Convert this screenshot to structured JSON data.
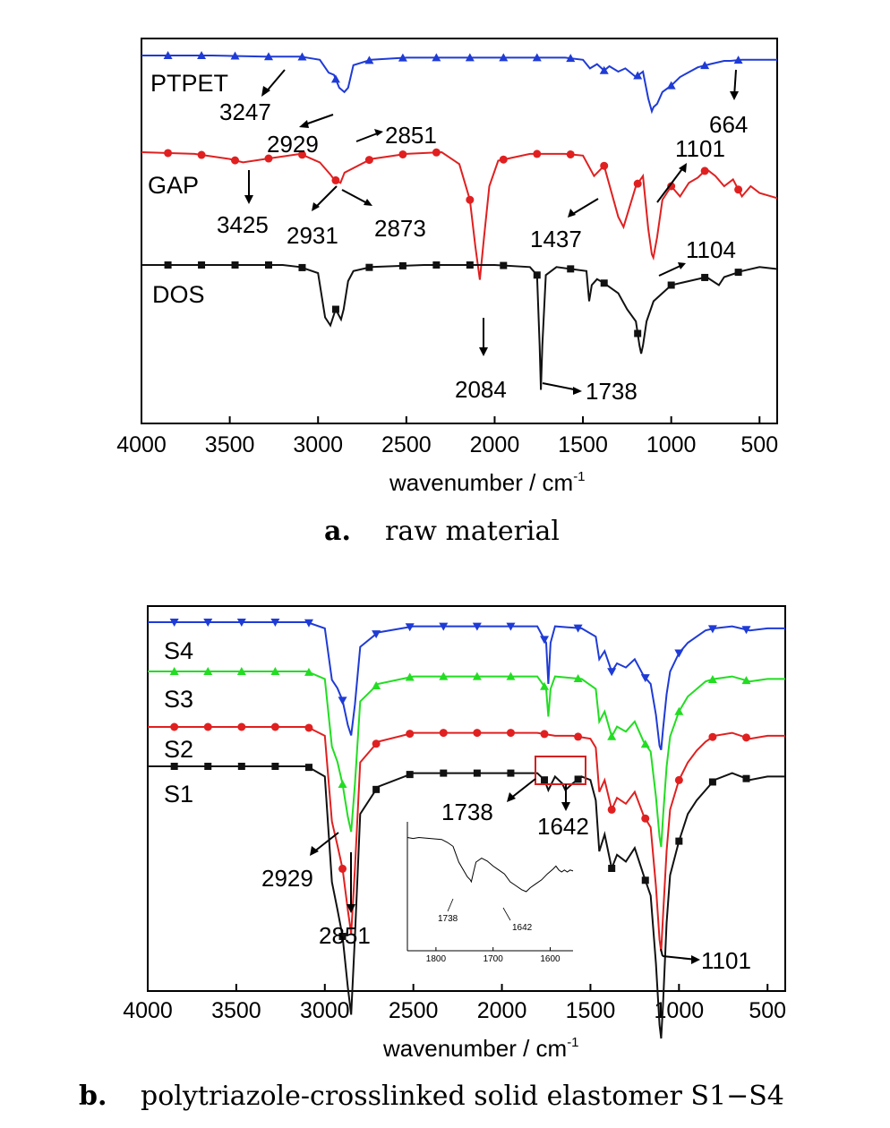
{
  "chart_data": [
    {
      "type": "line",
      "panel": "a",
      "caption_letter": "a.",
      "caption_text": "raw material",
      "xlabel": "wavenumber / cm",
      "xlabel_sup": "-1",
      "xlim": [
        4000,
        400
      ],
      "xticks": [
        4000,
        3500,
        3000,
        2500,
        2000,
        1500,
        1000,
        500
      ],
      "series": [
        {
          "name": "PTPET",
          "color": "#1f3bd6",
          "marker": "triangle-up",
          "x": [
            4000,
            3600,
            3300,
            3100,
            2990,
            2940,
            2910,
            2880,
            2851,
            2830,
            2800,
            2700,
            2500,
            2000,
            1600,
            1500,
            1460,
            1420,
            1380,
            1350,
            1300,
            1260,
            1200,
            1160,
            1130,
            1110,
            1100,
            1080,
            1050,
            1000,
            950,
            850,
            780,
            700,
            664,
            600,
            500,
            400
          ],
          "y": [
            1.0,
            1.0,
            0.99,
            0.99,
            0.96,
            0.84,
            0.82,
            0.7,
            0.66,
            0.7,
            0.91,
            0.96,
            0.98,
            0.98,
            0.98,
            0.96,
            0.88,
            0.92,
            0.86,
            0.9,
            0.85,
            0.88,
            0.8,
            0.85,
            0.6,
            0.48,
            0.52,
            0.55,
            0.66,
            0.72,
            0.8,
            0.89,
            0.92,
            0.95,
            0.95,
            0.96,
            0.96,
            0.96
          ]
        },
        {
          "name": "GAP",
          "color": "#e02020",
          "marker": "circle",
          "x": [
            4000,
            3700,
            3500,
            3425,
            3300,
            3100,
            2990,
            2931,
            2910,
            2873,
            2850,
            2700,
            2500,
            2300,
            2200,
            2140,
            2110,
            2084,
            2060,
            2030,
            1980,
            1800,
            1600,
            1500,
            1437,
            1380,
            1300,
            1270,
            1200,
            1160,
            1130,
            1110,
            1101,
            1080,
            1050,
            1000,
            950,
            900,
            850,
            800,
            750,
            700,
            650,
            600,
            550,
            500,
            400
          ],
          "y": [
            1.0,
            0.99,
            0.96,
            0.94,
            0.96,
            0.99,
            0.94,
            0.87,
            0.84,
            0.82,
            0.88,
            0.96,
            0.99,
            1.0,
            0.93,
            0.72,
            0.45,
            0.25,
            0.5,
            0.8,
            0.95,
            0.99,
            0.99,
            0.98,
            0.86,
            0.92,
            0.62,
            0.56,
            0.8,
            0.86,
            0.55,
            0.4,
            0.38,
            0.5,
            0.72,
            0.8,
            0.74,
            0.82,
            0.85,
            0.9,
            0.86,
            0.8,
            0.84,
            0.74,
            0.8,
            0.76,
            0.73
          ]
        },
        {
          "name": "DOS",
          "color": "#111111",
          "marker": "square",
          "x": [
            4000,
            3200,
            3100,
            3000,
            2960,
            2930,
            2900,
            2870,
            2855,
            2830,
            2800,
            2700,
            2400,
            2000,
            1800,
            1760,
            1745,
            1738,
            1730,
            1710,
            1650,
            1480,
            1465,
            1450,
            1420,
            1380,
            1300,
            1250,
            1200,
            1180,
            1170,
            1160,
            1140,
            1100,
            1050,
            1000,
            900,
            800,
            730,
            700,
            600,
            500,
            400
          ],
          "y": [
            1.0,
            1.0,
            0.99,
            0.96,
            0.74,
            0.7,
            0.78,
            0.73,
            0.78,
            0.92,
            0.97,
            0.99,
            1.0,
            1.0,
            0.99,
            0.95,
            0.6,
            0.38,
            0.6,
            0.95,
            0.99,
            0.97,
            0.82,
            0.9,
            0.93,
            0.91,
            0.86,
            0.78,
            0.72,
            0.6,
            0.56,
            0.6,
            0.72,
            0.82,
            0.86,
            0.9,
            0.92,
            0.94,
            0.9,
            0.94,
            0.97,
            0.99,
            0.98
          ]
        }
      ],
      "annotations": [
        "3247",
        "2929",
        "2851",
        "664",
        "3425",
        "2931",
        "2873",
        "1437",
        "1101",
        "1104",
        "2084",
        "1738"
      ]
    },
    {
      "type": "line",
      "panel": "b",
      "caption_letter": "b.",
      "caption_text": "polytriazole-crosslinked solid elastomer S1−S4",
      "xlabel": "wavenumber / cm",
      "xlabel_sup": "-1",
      "xlim": [
        4000,
        400
      ],
      "xticks": [
        4000,
        3500,
        3000,
        2500,
        2000,
        1500,
        1000,
        500
      ],
      "series": [
        {
          "name": "S4",
          "color": "#1f3bd6",
          "marker": "triangle-down",
          "x": [
            4000,
            3100,
            3000,
            2960,
            2929,
            2900,
            2870,
            2851,
            2830,
            2800,
            2700,
            2500,
            2000,
            1800,
            1750,
            1738,
            1725,
            1700,
            1550,
            1470,
            1450,
            1420,
            1380,
            1350,
            1300,
            1250,
            1200,
            1160,
            1130,
            1110,
            1101,
            1090,
            1070,
            1050,
            1000,
            950,
            900,
            850,
            800,
            700,
            600,
            500,
            400
          ],
          "y": [
            1.0,
            1.0,
            0.97,
            0.72,
            0.68,
            0.62,
            0.5,
            0.45,
            0.6,
            0.88,
            0.95,
            0.98,
            0.98,
            0.98,
            0.9,
            0.7,
            0.9,
            0.98,
            0.97,
            0.93,
            0.82,
            0.86,
            0.76,
            0.8,
            0.78,
            0.82,
            0.74,
            0.7,
            0.55,
            0.4,
            0.38,
            0.48,
            0.65,
            0.76,
            0.85,
            0.9,
            0.93,
            0.96,
            0.97,
            0.98,
            0.96,
            0.97,
            0.97
          ]
        },
        {
          "name": "S3",
          "color": "#22dd22",
          "marker": "triangle-up",
          "x": [
            4000,
            3100,
            3000,
            2960,
            2929,
            2900,
            2870,
            2851,
            2830,
            2800,
            2700,
            2500,
            2000,
            1800,
            1750,
            1738,
            1725,
            1700,
            1550,
            1470,
            1450,
            1420,
            1380,
            1350,
            1300,
            1250,
            1200,
            1160,
            1130,
            1110,
            1101,
            1090,
            1070,
            1050,
            1000,
            950,
            900,
            850,
            800,
            700,
            600,
            500,
            400
          ],
          "y": [
            1.0,
            1.0,
            0.97,
            0.7,
            0.64,
            0.55,
            0.42,
            0.36,
            0.55,
            0.88,
            0.95,
            0.98,
            0.98,
            0.98,
            0.93,
            0.82,
            0.93,
            0.98,
            0.97,
            0.93,
            0.8,
            0.84,
            0.74,
            0.78,
            0.76,
            0.8,
            0.72,
            0.68,
            0.5,
            0.34,
            0.3,
            0.42,
            0.62,
            0.74,
            0.84,
            0.9,
            0.93,
            0.96,
            0.97,
            0.98,
            0.96,
            0.97,
            0.97
          ]
        },
        {
          "name": "S2",
          "color": "#e02020",
          "marker": "circle",
          "x": [
            4000,
            3100,
            3000,
            2960,
            2929,
            2900,
            2870,
            2851,
            2830,
            2800,
            2700,
            2500,
            2000,
            1800,
            1700,
            1600,
            1500,
            1470,
            1450,
            1420,
            1380,
            1350,
            1300,
            1250,
            1200,
            1160,
            1130,
            1110,
            1101,
            1090,
            1070,
            1050,
            1000,
            950,
            900,
            850,
            800,
            700,
            600,
            500,
            400
          ],
          "y": [
            1.0,
            1.0,
            0.97,
            0.68,
            0.6,
            0.52,
            0.38,
            0.3,
            0.52,
            0.88,
            0.95,
            0.98,
            0.98,
            0.98,
            0.97,
            0.97,
            0.96,
            0.93,
            0.78,
            0.82,
            0.72,
            0.76,
            0.74,
            0.78,
            0.7,
            0.66,
            0.46,
            0.28,
            0.24,
            0.36,
            0.58,
            0.72,
            0.82,
            0.88,
            0.92,
            0.95,
            0.97,
            0.98,
            0.96,
            0.97,
            0.97
          ]
        },
        {
          "name": "S1",
          "color": "#111111",
          "marker": "square",
          "x": [
            4000,
            3100,
            3000,
            2960,
            2929,
            2900,
            2870,
            2851,
            2830,
            2800,
            2700,
            2500,
            2000,
            1800,
            1760,
            1738,
            1700,
            1660,
            1642,
            1600,
            1550,
            1500,
            1470,
            1450,
            1420,
            1380,
            1350,
            1300,
            1250,
            1200,
            1160,
            1130,
            1110,
            1101,
            1090,
            1070,
            1050,
            1000,
            950,
            900,
            850,
            800,
            700,
            600,
            500,
            400
          ],
          "y": [
            1.0,
            1.0,
            0.97,
            0.66,
            0.58,
            0.5,
            0.35,
            0.27,
            0.5,
            0.86,
            0.94,
            0.98,
            0.98,
            0.98,
            0.96,
            0.93,
            0.97,
            0.95,
            0.93,
            0.95,
            0.97,
            0.96,
            0.9,
            0.75,
            0.8,
            0.7,
            0.74,
            0.72,
            0.76,
            0.68,
            0.62,
            0.42,
            0.24,
            0.2,
            0.3,
            0.54,
            0.68,
            0.78,
            0.86,
            0.9,
            0.93,
            0.96,
            0.98,
            0.96,
            0.97,
            0.97
          ]
        }
      ],
      "annotations": [
        "2929",
        "2851",
        "1738",
        "1642",
        "1101"
      ],
      "inset": {
        "xlim": [
          1850,
          1560
        ],
        "xticks": [
          1800,
          1700,
          1600
        ],
        "x": [
          1850,
          1840,
          1830,
          1810,
          1790,
          1780,
          1770,
          1760,
          1750,
          1745,
          1740,
          1738,
          1735,
          1730,
          1720,
          1710,
          1700,
          1690,
          1680,
          1670,
          1660,
          1650,
          1642,
          1635,
          1625,
          1615,
          1605,
          1595,
          1590,
          1585,
          1580,
          1575,
          1570,
          1565,
          1560
        ],
        "y": [
          0.95,
          0.94,
          0.95,
          0.94,
          0.93,
          0.9,
          0.86,
          0.7,
          0.6,
          0.55,
          0.52,
          0.5,
          0.58,
          0.7,
          0.74,
          0.71,
          0.66,
          0.62,
          0.58,
          0.5,
          0.46,
          0.42,
          0.4,
          0.44,
          0.48,
          0.52,
          0.58,
          0.63,
          0.66,
          0.62,
          0.6,
          0.62,
          0.6,
          0.62,
          0.61
        ],
        "annotations": [
          "1738",
          "1642"
        ]
      }
    }
  ]
}
